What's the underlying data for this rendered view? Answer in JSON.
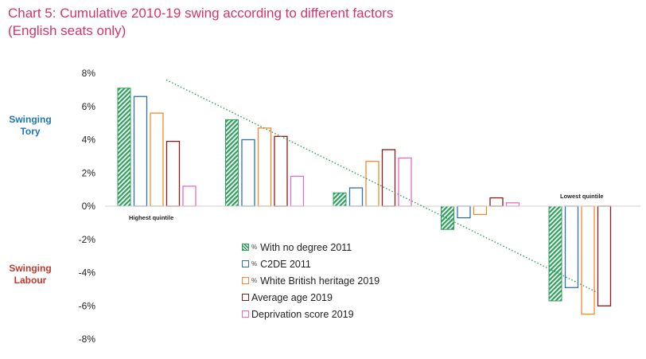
{
  "title_line1": "Chart 5: Cumulative 2010-19 swing according to different factors",
  "title_line2": "(English seats only)",
  "label_tory": [
    "Swinging",
    "Tory"
  ],
  "label_labour": [
    "Swinging",
    "Labour"
  ],
  "colors": {
    "title": "#d6336c",
    "tory": "#1f77b4",
    "labour": "#c0392b",
    "trend": "#2ca05a"
  },
  "chart_data": {
    "type": "bar",
    "categories": [
      "Highest quintile",
      "",
      "",
      "",
      "Lowest quintile"
    ],
    "ylim": [
      -8,
      8
    ],
    "yticks": [
      "8%",
      "6%",
      "4%",
      "2%",
      "0%",
      "-2%",
      "-4%",
      "-6%",
      "-8%"
    ],
    "series": [
      {
        "name": "% With no degree 2011",
        "color": "#2ca05a",
        "hatched": true,
        "values": [
          7.1,
          5.2,
          0.8,
          -1.4,
          -5.7
        ]
      },
      {
        "name": "% C2DE 2011",
        "color": "#2e6fb5",
        "hatched": false,
        "values": [
          6.6,
          4.0,
          1.1,
          -0.7,
          -4.9
        ]
      },
      {
        "name": "% White British heritage 2019",
        "color": "#f08a2c",
        "hatched": false,
        "values": [
          5.6,
          4.7,
          2.7,
          -0.5,
          -6.5
        ]
      },
      {
        "name": "Average age 2019",
        "color": "#8b1a1a",
        "hatched": false,
        "values": [
          3.9,
          4.2,
          3.4,
          0.5,
          -6.0
        ]
      },
      {
        "name": "Deprivation score 2019",
        "color": "#e86cc0",
        "hatched": false,
        "values": [
          1.2,
          1.8,
          2.9,
          0.2,
          0.0
        ]
      }
    ],
    "trendline": {
      "from": [
        0.45,
        7.6
      ],
      "to": [
        4.45,
        -5.2
      ]
    }
  },
  "legend": [
    {
      "prefix": "%",
      "text": "With no degree 2011",
      "color": "#2ca05a",
      "hatched": true
    },
    {
      "prefix": "%",
      "text": "C2DE 2011",
      "color": "#2e6fb5",
      "hatched": false
    },
    {
      "prefix": "%",
      "text": "White British heritage 2019",
      "color": "#f08a2c",
      "hatched": false
    },
    {
      "prefix": "",
      "text": "Average age 2019",
      "color": "#8b1a1a",
      "hatched": false
    },
    {
      "prefix": "",
      "text": "Deprivation score 2019",
      "color": "#e86cc0",
      "hatched": false
    }
  ]
}
